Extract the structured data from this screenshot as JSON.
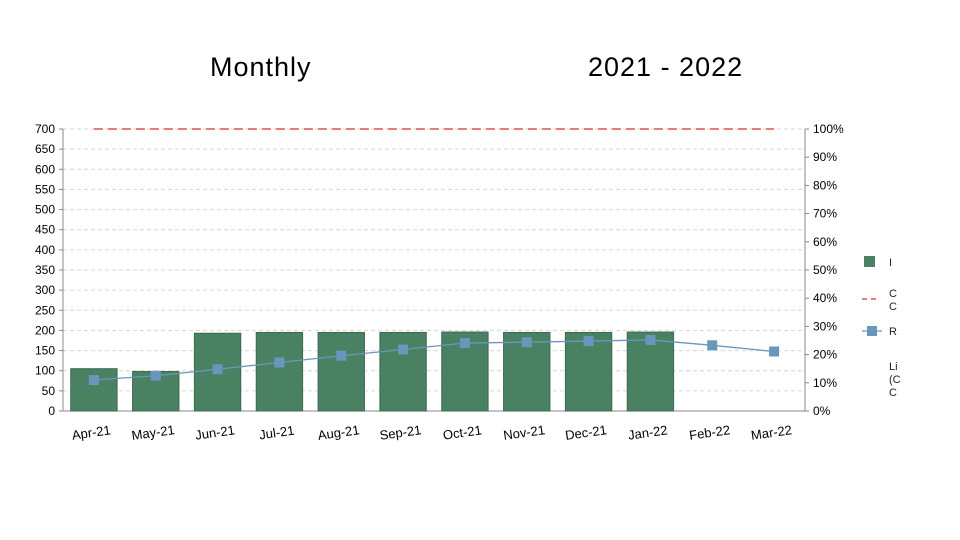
{
  "header": {
    "title_left": "Monthly",
    "title_right": "2021 - 2022"
  },
  "chart_data": {
    "type": "bar",
    "categories": [
      "Apr-21",
      "May-21",
      "Jun-21",
      "Jul-21",
      "Aug-21",
      "Sep-21",
      "Oct-21",
      "Nov-21",
      "Dec-21",
      "Jan-22",
      "Feb-22",
      "Mar-22"
    ],
    "series": [
      {
        "kind": "bar",
        "axis": "left",
        "color": "#4a8163",
        "values": [
          105,
          98,
          193,
          195,
          195,
          195,
          196,
          195,
          195,
          196,
          null,
          null
        ]
      },
      {
        "kind": "dashed-line",
        "axis": "right",
        "color": "#e0534b",
        "values": [
          100,
          100,
          100,
          100,
          100,
          100,
          100,
          100,
          100,
          100,
          100,
          100
        ]
      },
      {
        "kind": "line-marker",
        "axis": "right",
        "color": "#6897bb",
        "values": [
          11,
          12.5,
          14.8,
          17.2,
          19.6,
          21.8,
          24.1,
          24.4,
          24.8,
          25.2,
          23.3,
          21.1
        ]
      }
    ],
    "y_left": {
      "min": 0,
      "max": 700,
      "step": 50
    },
    "y_right": {
      "min": 0,
      "max": 100,
      "step": 10,
      "unit": "%"
    },
    "grid": true,
    "legend_position": "right",
    "legend_items": [
      {
        "kind": "bar",
        "lines": [
          "I"
        ]
      },
      {
        "kind": "dashed-line",
        "lines": [
          "C",
          "C"
        ]
      },
      {
        "kind": "line-marker",
        "lines": [
          "R"
        ]
      },
      {
        "kind": "text",
        "lines": [
          "Li",
          "(C",
          "C"
        ]
      }
    ]
  }
}
